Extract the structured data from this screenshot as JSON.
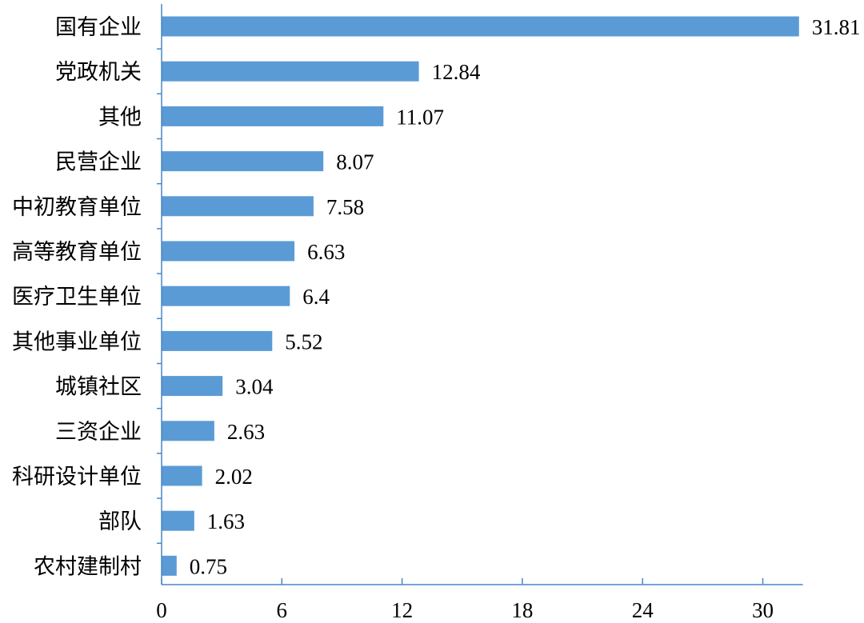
{
  "chart_data": {
    "type": "bar",
    "orientation": "horizontal",
    "title": "",
    "xlabel": "",
    "ylabel": "",
    "categories": [
      "国有企业",
      "党政机关",
      "其他",
      "民营企业",
      "中初教育单位",
      "高等教育单位",
      "医疗卫生单位",
      "其他事业单位",
      "城镇社区",
      "三资企业",
      "科研设计单位",
      "部队",
      "农村建制村"
    ],
    "values": [
      31.81,
      12.84,
      11.07,
      8.07,
      7.58,
      6.63,
      6.4,
      5.52,
      3.04,
      2.63,
      2.02,
      1.63,
      0.75
    ],
    "value_labels": [
      "31.81",
      "12.84",
      "11.07",
      "8.07",
      "7.58",
      "6.63",
      "6.4",
      "5.52",
      "3.04",
      "2.63",
      "2.02",
      "1.63",
      "0.75"
    ],
    "xlim": [
      0,
      32
    ],
    "xticks": [
      0,
      6,
      12,
      18,
      24,
      30
    ],
    "xtick_labels": [
      "0",
      "6",
      "12",
      "18",
      "24",
      "30"
    ],
    "grid": false,
    "bar_color": "#5b9bd5",
    "axis_color": "#4a86c5"
  }
}
